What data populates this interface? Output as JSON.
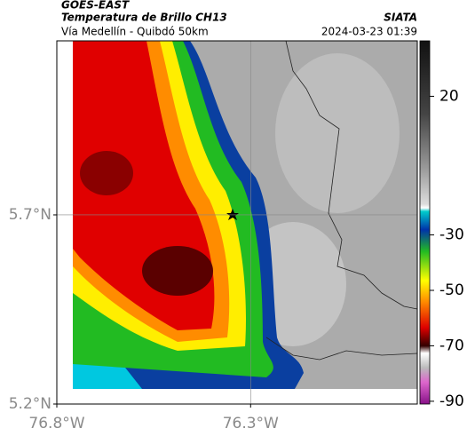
{
  "header": {
    "satellite": "GOES-EAST",
    "product": "Temperatura de Brillo CH13",
    "source": "SIATA",
    "region": "Vía Medellín - Quibdó 50km",
    "timestamp": "2024-03-23 01:39"
  },
  "map": {
    "xlim": [
      -76.8,
      -75.87
    ],
    "ylim": [
      5.2,
      6.16
    ],
    "xticks": [
      {
        "value": -76.8,
        "label": "76.8°W"
      },
      {
        "value": -76.3,
        "label": "76.3°W"
      }
    ],
    "yticks": [
      {
        "value": 5.2,
        "label": "5.2°N"
      },
      {
        "value": 5.7,
        "label": "5.7°N"
      }
    ],
    "grid": true
  },
  "colorbar": {
    "lim": [
      -91,
      40
    ],
    "ticks": [
      20,
      -30,
      -50,
      -70,
      -90
    ]
  }
}
